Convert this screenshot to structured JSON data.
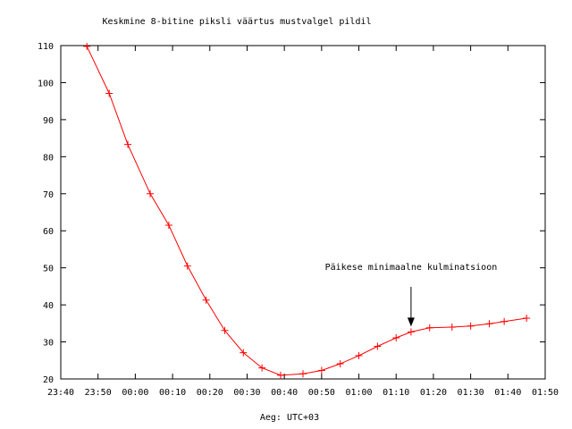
{
  "chart_data": {
    "type": "line",
    "title": "Keskmine 8-bitine piksli väärtus mustvalgel pildil",
    "xlabel": "Aeg: UTC+03",
    "ylabel": "",
    "x_ticks": [
      "23:40",
      "23:50",
      "00:00",
      "00:10",
      "00:20",
      "00:30",
      "00:40",
      "00:50",
      "01:00",
      "01:10",
      "01:20",
      "01:30",
      "01:40",
      "01:50"
    ],
    "y_ticks": [
      "20",
      "30",
      "40",
      "50",
      "60",
      "70",
      "80",
      "90",
      "100",
      "110"
    ],
    "ylim": [
      20,
      110
    ],
    "xlim": [
      "23:40",
      "01:50"
    ],
    "grid": false,
    "series_color": "#ff0000",
    "series": [
      {
        "x": [
          "23:47",
          "23:53",
          "23:58",
          "00:04",
          "00:09",
          "00:14",
          "00:19",
          "00:24",
          "00:29",
          "00:34",
          "00:39",
          "00:45",
          "00:50",
          "00:55",
          "01:00",
          "01:05",
          "01:10",
          "01:14",
          "01:19",
          "01:25",
          "01:30",
          "01:35",
          "01:39",
          "01:45"
        ],
        "values": [
          109.8,
          97.1,
          83.3,
          70.0,
          61.5,
          50.5,
          41.3,
          33.1,
          27.1,
          23.0,
          21.0,
          21.4,
          22.3,
          24.1,
          26.3,
          28.8,
          31.1,
          32.7,
          33.8,
          34.0,
          34.3,
          34.9,
          35.5,
          36.4
        ]
      }
    ],
    "annotation": {
      "text": "Päikese minimaalne kulminatsioon",
      "points_to_x": "01:14",
      "points_to_y": 32.7
    }
  }
}
